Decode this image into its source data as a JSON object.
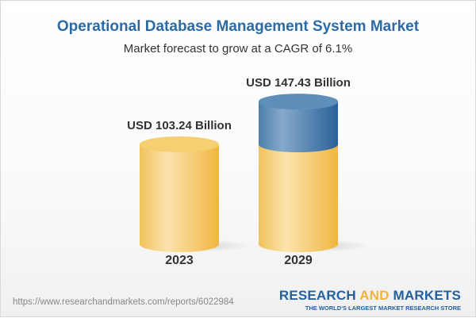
{
  "title": "Operational Database Management System Market",
  "subtitle": "Market forecast to grow at a CAGR of 6.1%",
  "chart_data": {
    "type": "bar",
    "style": "3d-cylinder",
    "categories": [
      "2023",
      "2029"
    ],
    "values": [
      103.24,
      147.43
    ],
    "data_labels": [
      "USD 103.24 Billion",
      "USD 147.43 Billion"
    ],
    "colors": {
      "base": "#f3c35a",
      "growth": "#3f78a8"
    }
  },
  "footer": {
    "url": "https://www.researchandmarkets.com/reports/6022984",
    "logo_research": "RESEARCH",
    "logo_and": "AND",
    "logo_markets": "MARKETS",
    "logo_tagline": "THE WORLD'S LARGEST MARKET RESEARCH STORE"
  }
}
